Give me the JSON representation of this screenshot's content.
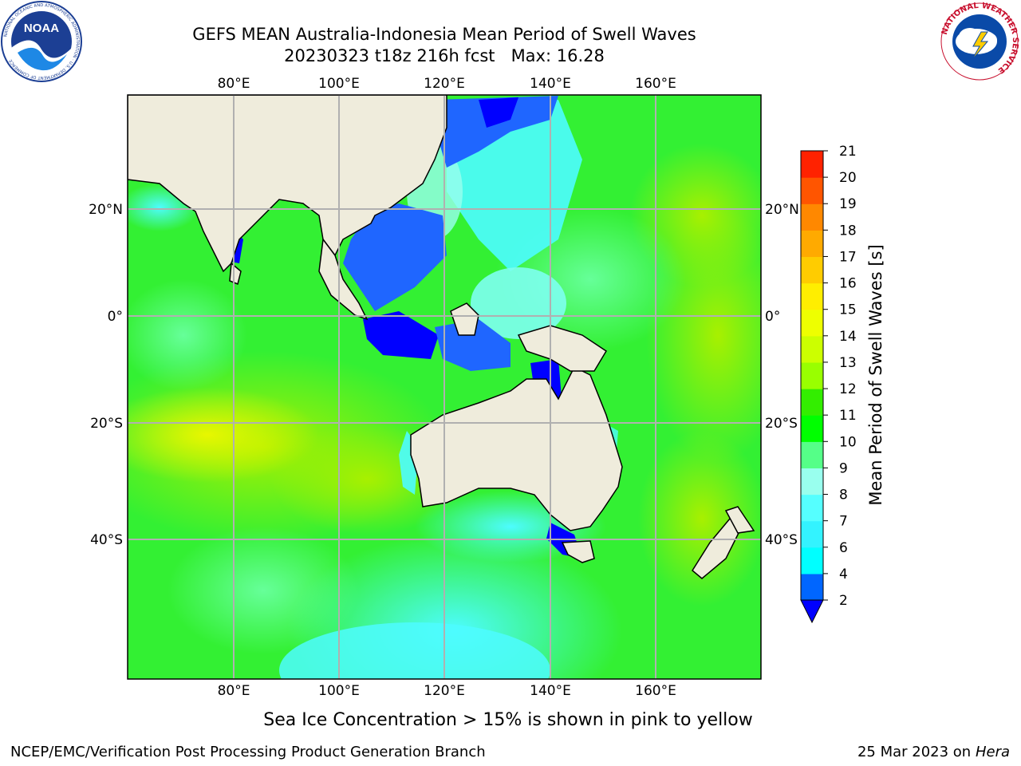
{
  "header": {
    "title_line1": "GEFS MEAN Australia-Indonesia Mean Period of Swell Waves",
    "title_line2": "20230323 t18z 216h fcst   Max: 16.28"
  },
  "logos": {
    "left": {
      "text": "NOAA",
      "ring_text": "NATIONAL OCEANIC AND ATMOSPHERIC ADMINISTRATION · U.S. DEPARTMENT OF COMMERCE"
    },
    "right": {
      "ring_text": "NATIONAL WEATHER SERVICE"
    }
  },
  "map": {
    "lon_ticks": [
      "80°E",
      "100°E",
      "120°E",
      "140°E",
      "160°E"
    ],
    "lat_ticks": [
      "20°N",
      "0°",
      "20°S",
      "40°S"
    ],
    "grid": true,
    "region": "Australia-Indonesia",
    "colors": {
      "land": "#efecdc",
      "gridline": "#b0b0b0"
    }
  },
  "colorbar": {
    "label": "Mean Period of Swell Waves [s]",
    "ticks": [
      "2",
      "4",
      "6",
      "7",
      "8",
      "9",
      "10",
      "11",
      "12",
      "13",
      "14",
      "15",
      "16",
      "17",
      "18",
      "19",
      "20",
      "21"
    ],
    "colors": [
      "#0000ff",
      "#0066ff",
      "#00ffff",
      "#33f3ff",
      "#55ffff",
      "#99ffee",
      "#55ff88",
      "#00ff00",
      "#33ee00",
      "#99ff00",
      "#ccff00",
      "#eeff00",
      "#ffee00",
      "#ffcc00",
      "#ffaa00",
      "#ff8800",
      "#ff5500",
      "#ff2200",
      "#ff0000"
    ],
    "extend": "min"
  },
  "notes": {
    "sea_ice": "Sea Ice Concentration > 15% is shown in pink to yellow"
  },
  "footer": {
    "left": "NCEP/EMC/Verification Post Processing Product Generation Branch",
    "right_date": "25 Mar 2023 on",
    "right_system": "Hera"
  }
}
